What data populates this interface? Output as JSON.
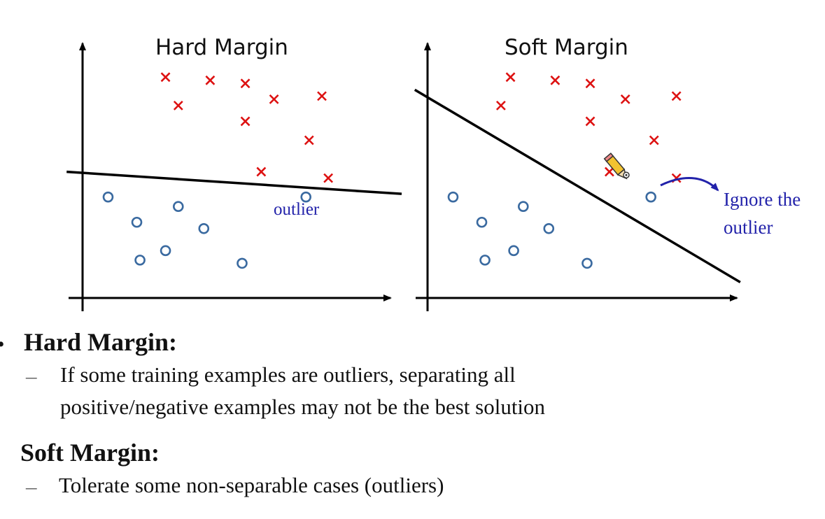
{
  "colors": {
    "positive": "#dd1111",
    "negative": "#3a6aa0",
    "annotation": "#2222aa",
    "axis": "#000000"
  },
  "chart_data": [
    {
      "type": "scatter",
      "title": "Hard Margin",
      "xlabel": "",
      "ylabel": "",
      "xlim": [
        0,
        10
      ],
      "ylim": [
        0,
        8
      ],
      "series": [
        {
          "marker": "x",
          "points": [
            [
              2.6,
              7.0
            ],
            [
              4.0,
              6.9
            ],
            [
              5.1,
              6.8
            ],
            [
              3.0,
              6.1
            ],
            [
              6.0,
              6.3
            ],
            [
              7.5,
              6.4
            ],
            [
              5.1,
              5.6
            ],
            [
              7.1,
              5.0
            ],
            [
              5.6,
              4.0
            ],
            [
              7.7,
              3.8
            ]
          ]
        },
        {
          "marker": "o",
          "points": [
            [
              0.8,
              3.2
            ],
            [
              3.0,
              2.9
            ],
            [
              1.7,
              2.4
            ],
            [
              3.8,
              2.2
            ],
            [
              2.6,
              1.5
            ],
            [
              1.8,
              1.2
            ],
            [
              5.0,
              1.1
            ],
            [
              7.0,
              3.2
            ]
          ]
        }
      ],
      "boundary": [
        [
          -0.5,
          4.0
        ],
        [
          10.0,
          3.3
        ]
      ],
      "annotations": [
        {
          "text": "outlier",
          "at": [
            7.0,
            3.2
          ]
        }
      ]
    },
    {
      "type": "scatter",
      "title": "Soft Margin",
      "xlabel": "",
      "ylabel": "",
      "xlim": [
        0,
        10
      ],
      "ylim": [
        0,
        8
      ],
      "series": [
        {
          "marker": "x",
          "points": [
            [
              2.6,
              7.0
            ],
            [
              4.0,
              6.9
            ],
            [
              5.1,
              6.8
            ],
            [
              2.3,
              6.1
            ],
            [
              6.2,
              6.3
            ],
            [
              7.8,
              6.4
            ],
            [
              5.1,
              5.6
            ],
            [
              7.1,
              5.0
            ],
            [
              5.7,
              4.0
            ],
            [
              7.8,
              3.8
            ]
          ]
        },
        {
          "marker": "o",
          "points": [
            [
              0.8,
              3.2
            ],
            [
              3.0,
              2.9
            ],
            [
              1.7,
              2.4
            ],
            [
              3.8,
              2.2
            ],
            [
              2.7,
              1.5
            ],
            [
              1.8,
              1.2
            ],
            [
              5.0,
              1.1
            ],
            [
              7.0,
              3.2
            ]
          ]
        }
      ],
      "boundary": [
        [
          -0.4,
          6.6
        ],
        [
          9.8,
          0.5
        ]
      ],
      "annotations": [
        {
          "text": "Ignore the outlier",
          "at": [
            7.0,
            3.2
          ]
        }
      ]
    }
  ],
  "annotations": {
    "outlier": "outlier",
    "ignore_line1": "Ignore the",
    "ignore_line2": "outlier"
  },
  "cursor_icon": "pencil-icon",
  "bullets": {
    "hard_heading": "Hard Margin:",
    "hard_dash": "–",
    "hard_text_1": "If some training examples are outliers, separating all",
    "hard_text_2": "positive/negative examples may not be the best solution",
    "soft_heading": "Soft Margin:",
    "soft_dash": "–",
    "soft_text": "Tolerate some non-separable cases (outliers)"
  }
}
